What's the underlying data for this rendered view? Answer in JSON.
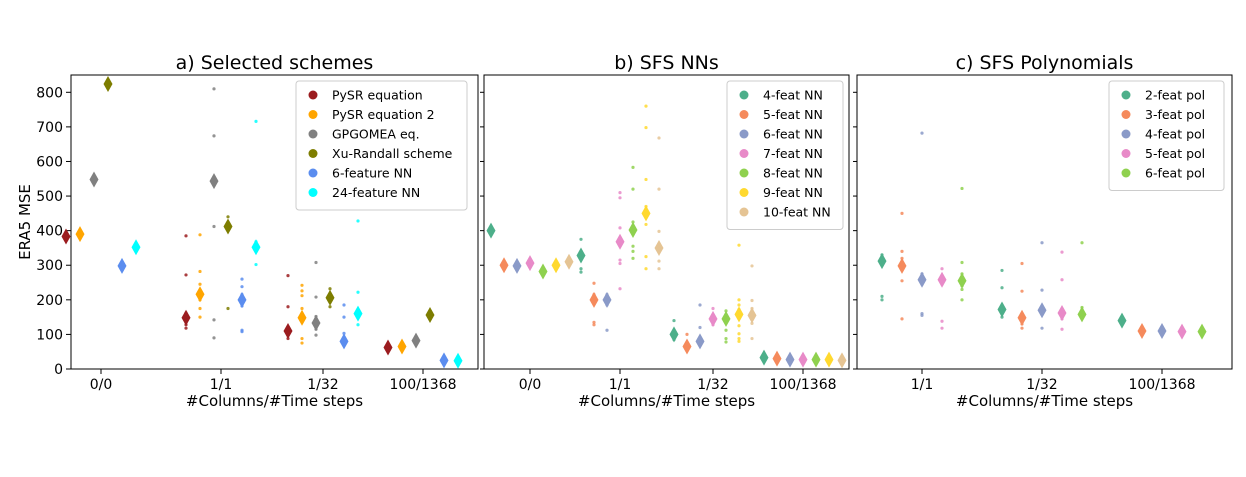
{
  "chart_data": [
    {
      "type": "scatter",
      "title": "a) Selected schemes",
      "xlabel": "#Columns/#Time steps",
      "ylabel": "ERA5 MSE",
      "ylim": [
        0,
        850
      ],
      "yticks": [
        0,
        100,
        200,
        300,
        400,
        500,
        600,
        700,
        800
      ],
      "categories": [
        "0/0",
        "1/1",
        "1/32",
        "100/1368"
      ],
      "legend_position": "top-right",
      "series": [
        {
          "name": "PySR equation",
          "color": "#9b1c1f",
          "means": [
            383,
            148,
            110,
            62
          ],
          "scatter": [
            [],
            [
              385,
              272,
              162,
              140,
              128,
              118
            ],
            [
              270,
              180,
              120,
              100,
              88
            ],
            [
              68,
              60,
              55
            ]
          ]
        },
        {
          "name": "PySR equation 2",
          "color": "#ffa500",
          "means": [
            390,
            216,
            148,
            65
          ],
          "scatter": [
            [],
            [
              388,
              282,
              245,
              200,
              175,
              150
            ],
            [
              242,
              226,
              212,
              175,
              88,
              75
            ],
            [
              70,
              62,
              58
            ]
          ]
        },
        {
          "name": "GPGOMEA eq.",
          "color": "#808080",
          "means": [
            548,
            543,
            133,
            82
          ],
          "scatter": [
            [],
            [
              810,
              674,
              555,
              412,
              142,
              90
            ],
            [
              308,
              208,
              152,
              115,
              98
            ],
            [
              90,
              78
            ]
          ]
        },
        {
          "name": "Xu-Randall scheme",
          "color": "#7d7d00",
          "means": [
            824,
            412,
            206,
            156
          ],
          "scatter": [
            [],
            [
              440,
              420,
              175
            ],
            [
              232,
              212,
              180
            ],
            [
              160,
              150
            ]
          ]
        },
        {
          "name": "6-feature NN",
          "color": "#5b8def",
          "means": [
            298,
            200,
            80,
            25
          ],
          "scatter": [
            [],
            [
              260,
              238,
              215,
              182,
              112,
              108
            ],
            [
              185,
              150,
              103,
              78,
              68
            ],
            [
              30,
              25,
              20
            ]
          ]
        },
        {
          "name": "24-feature NN",
          "color": "#00ffff",
          "means": [
            352,
            352,
            160,
            24
          ],
          "scatter": [
            [],
            [
              716,
              368,
              302
            ],
            [
              428,
              222,
              158,
              128
            ],
            [
              30,
              22,
              18
            ]
          ]
        }
      ]
    },
    {
      "type": "scatter",
      "title": "b) SFS NNs",
      "xlabel": "#Columns/#Time steps",
      "ylabel": "",
      "ylim": [
        0,
        850
      ],
      "categories": [
        "0/0",
        "1/1",
        "1/32",
        "100/1368"
      ],
      "legend_position": "top-right",
      "series": [
        {
          "name": "4-feat NN",
          "color": "#4daf8a",
          "means": [
            400,
            328,
            100,
            33
          ],
          "scatter": [
            [],
            [
              375,
              338,
              290,
              280
            ],
            [
              140,
              108,
              85
            ],
            [
              38,
              30
            ]
          ]
        },
        {
          "name": "5-feat NN",
          "color": "#f58a5c",
          "means": [
            300,
            200,
            65,
            30
          ],
          "scatter": [
            [],
            [
              248,
              215,
              135,
              128
            ],
            [
              100,
              75,
              60
            ],
            [
              33,
              28
            ]
          ]
        },
        {
          "name": "6-feat NN",
          "color": "#8a9ac8",
          "means": [
            298,
            200,
            80,
            27
          ],
          "scatter": [
            [],
            [
              215,
              185,
              112
            ],
            [
              185,
              120,
              72,
              68
            ],
            [
              30,
              25
            ]
          ]
        },
        {
          "name": "7-feat NN",
          "color": "#e88ac8",
          "means": [
            306,
            368,
            145,
            27
          ],
          "scatter": [
            [],
            [
              510,
              495,
              408,
              315,
              305,
              232
            ],
            [
              175,
              150,
              128
            ],
            [
              30,
              25
            ]
          ]
        },
        {
          "name": "8-feat NN",
          "color": "#8fd14f",
          "means": [
            282,
            402,
            145,
            27
          ],
          "scatter": [
            [],
            [
              583,
              520,
              425,
              405,
              355,
              340,
              320
            ],
            [
              168,
              150,
              112,
              88,
              78
            ],
            [
              30,
              25
            ]
          ]
        },
        {
          "name": "9-feat NN",
          "color": "#ffd92f",
          "means": [
            300,
            450,
            158,
            27
          ],
          "scatter": [
            [],
            [
              760,
              698,
              548,
              470,
              418,
              325,
              290
            ],
            [
              358,
              200,
              185,
              172,
              125,
              102,
              88,
              80
            ],
            [
              30,
              25
            ]
          ]
        },
        {
          "name": "10-feat NN",
          "color": "#e5c494",
          "means": [
            310,
            350,
            155,
            25
          ],
          "scatter": [
            [],
            [
              668,
              520,
              398,
              362,
              312,
              290
            ],
            [
              298,
              198,
              175,
              155,
              132,
              88
            ],
            [
              28,
              22
            ]
          ]
        }
      ]
    },
    {
      "type": "scatter",
      "title": "c) SFS Polynomials",
      "xlabel": "#Columns/#Time steps",
      "ylabel": "",
      "ylim": [
        0,
        850
      ],
      "categories": [
        "1/1",
        "1/32",
        "100/1368"
      ],
      "legend_position": "top-right",
      "series": [
        {
          "name": "2-feat pol",
          "color": "#4daf8a",
          "means": [
            312,
            172,
            140
          ],
          "scatter": [
            [
              330,
              300,
              210,
              200
            ],
            [
              285,
              235,
              185,
              165,
              150
            ],
            [
              145,
              135
            ]
          ]
        },
        {
          "name": "3-feat pol",
          "color": "#f58a5c",
          "means": [
            298,
            148,
            110
          ],
          "scatter": [
            [
              450,
              340,
              320,
              255,
              145
            ],
            [
              305,
              225,
              155,
              130,
              118
            ],
            [
              115,
              105
            ]
          ]
        },
        {
          "name": "4-feat pol",
          "color": "#8a9ac8",
          "means": [
            258,
            170,
            110
          ],
          "scatter": [
            [
              682,
              275,
              245,
              160,
              155
            ],
            [
              365,
              228,
              178,
              158,
              118
            ],
            [
              115,
              105
            ]
          ]
        },
        {
          "name": "5-feat pol",
          "color": "#e88ac8",
          "means": [
            258,
            162,
            108
          ],
          "scatter": [
            [
              290,
              245,
              138,
              118
            ],
            [
              338,
              258,
              172,
              145,
              115
            ],
            [
              112,
              102
            ]
          ]
        },
        {
          "name": "6-feat pol",
          "color": "#8fd14f",
          "means": [
            255,
            158,
            108
          ],
          "scatter": [
            [
              522,
              308,
              275,
              240,
              230,
              200
            ],
            [
              365,
              178,
              148
            ],
            [
              112,
              100
            ]
          ]
        }
      ]
    }
  ]
}
